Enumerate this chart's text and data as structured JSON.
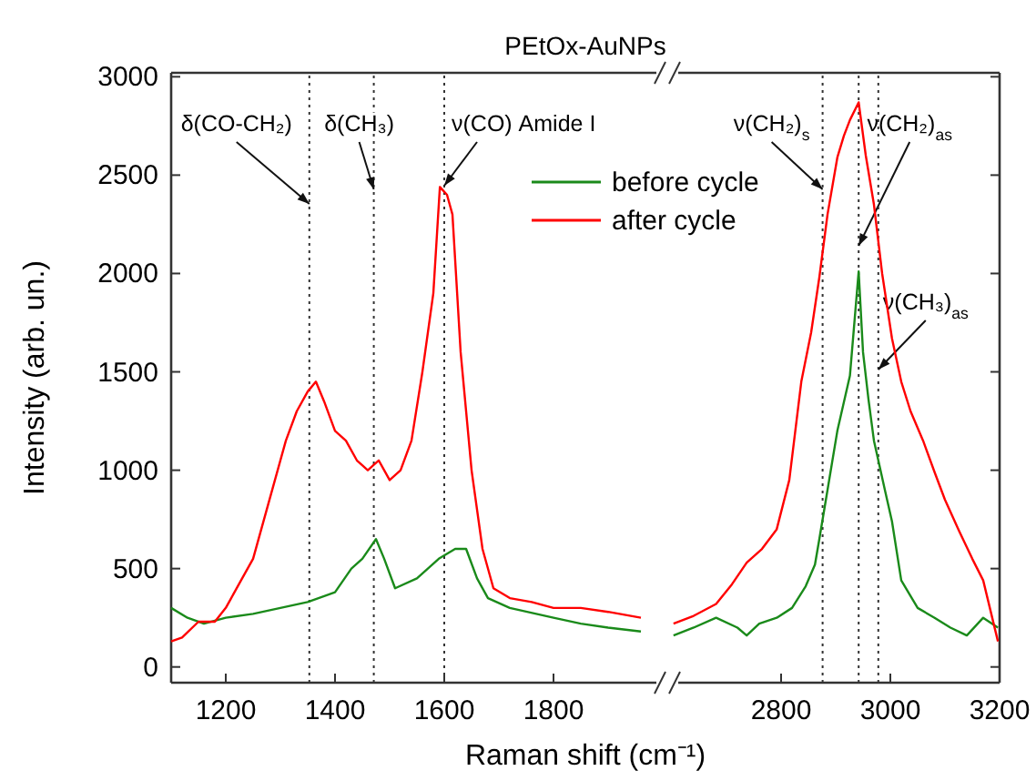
{
  "chart_data": [
    {
      "type": "line",
      "title": "PEtOx-AuNPs",
      "xlabel": "Raman shift (cm⁻¹)",
      "ylabel": "Intensity (arb. un.)",
      "xlim": [
        1100,
        2000
      ],
      "xticks": [
        1200,
        1400,
        1600,
        1800
      ],
      "ylim": [
        -80,
        3020
      ],
      "yticks": [
        0,
        500,
        1000,
        1500,
        2000,
        2500,
        3000
      ],
      "legend": "top right",
      "line_style": "solid",
      "marker": "none",
      "ref_lines": [
        {
          "axis": "x",
          "value": 1353,
          "label": "δ(CO-CH₂)",
          "line_style": "dotted",
          "color": "#333333"
        },
        {
          "axis": "x",
          "value": 1471,
          "label": "δ(CH₃)",
          "line_style": "dotted",
          "color": "#333333"
        },
        {
          "axis": "x",
          "value": 1600,
          "label": "ν(CO) Amide I",
          "line_style": "dotted",
          "color": "#333333"
        }
      ],
      "series": [
        {
          "name": "before cycle",
          "color": "#1a8a1a",
          "x": [
            1100,
            1130,
            1160,
            1200,
            1250,
            1300,
            1350,
            1400,
            1430,
            1450,
            1475,
            1490,
            1510,
            1550,
            1590,
            1620,
            1640,
            1660,
            1680,
            1720,
            1800,
            1850,
            1900,
            1960
          ],
          "values": [
            300,
            250,
            220,
            250,
            270,
            300,
            330,
            380,
            500,
            550,
            650,
            550,
            400,
            450,
            550,
            600,
            600,
            450,
            350,
            300,
            250,
            220,
            200,
            180
          ]
        },
        {
          "name": "after cycle",
          "color": "#ff0000",
          "x": [
            1100,
            1120,
            1150,
            1180,
            1200,
            1230,
            1250,
            1270,
            1290,
            1310,
            1330,
            1350,
            1365,
            1380,
            1400,
            1420,
            1440,
            1460,
            1480,
            1500,
            1520,
            1540,
            1560,
            1580,
            1592,
            1605,
            1615,
            1630,
            1650,
            1670,
            1690,
            1720,
            1760,
            1800,
            1850,
            1900,
            1960
          ],
          "values": [
            130,
            150,
            230,
            230,
            300,
            450,
            550,
            750,
            950,
            1150,
            1300,
            1400,
            1450,
            1350,
            1200,
            1150,
            1050,
            1000,
            1050,
            950,
            1000,
            1150,
            1500,
            1900,
            2440,
            2400,
            2300,
            1600,
            1000,
            600,
            400,
            350,
            330,
            300,
            300,
            280,
            250
          ]
        }
      ]
    },
    {
      "type": "line",
      "xlim": [
        2600,
        3200
      ],
      "xticks": [
        2800,
        3000,
        3200
      ],
      "ylim": [
        -80,
        3020
      ],
      "yticks": [
        0,
        500,
        1000,
        1500,
        2000,
        2500,
        3000
      ],
      "tick_labels": "x",
      "line_style": "solid",
      "marker": "none",
      "ref_lines": [
        {
          "axis": "x",
          "value": 2876,
          "label": "ν(CH₂)$_{s}$",
          "line_style": "dotted",
          "color": "#333333"
        },
        {
          "axis": "x",
          "value": 2942,
          "label": "ν(CH₂)$_{as}$",
          "line_style": "dotted",
          "color": "#333333"
        },
        {
          "axis": "x",
          "value": 2978,
          "label": "ν(CH₃)$_{as}$",
          "line_style": "dotted",
          "color": "#333333"
        }
      ],
      "series": [
        {
          "color": "#1a8a1a",
          "x": [
            2603,
            2640,
            2681,
            2720,
            2737,
            2760,
            2792,
            2820,
            2845,
            2862,
            2870,
            2885,
            2903,
            2926,
            2942,
            2950,
            2960,
            2970,
            2990,
            3003,
            3020,
            3050,
            3081,
            3110,
            3140,
            3170,
            3197
          ],
          "values": [
            160,
            200,
            250,
            200,
            160,
            220,
            250,
            300,
            410,
            520,
            650,
            900,
            1200,
            1480,
            2010,
            1600,
            1360,
            1150,
            900,
            740,
            440,
            300,
            250,
            200,
            160,
            250,
            200
          ]
        },
        {
          "color": "#ff0000",
          "x": [
            2603,
            2640,
            2681,
            2710,
            2737,
            2765,
            2792,
            2815,
            2837,
            2855,
            2870,
            2885,
            2903,
            2915,
            2926,
            2942,
            2955,
            2970,
            2985,
            3003,
            3020,
            3037,
            3060,
            3081,
            3100,
            3126,
            3150,
            3170,
            3197
          ],
          "values": [
            220,
            260,
            320,
            420,
            530,
            600,
            700,
            950,
            1450,
            1700,
            1980,
            2300,
            2590,
            2700,
            2780,
            2870,
            2600,
            2350,
            2000,
            1670,
            1450,
            1300,
            1150,
            990,
            850,
            690,
            550,
            440,
            130
          ]
        }
      ]
    }
  ]
}
